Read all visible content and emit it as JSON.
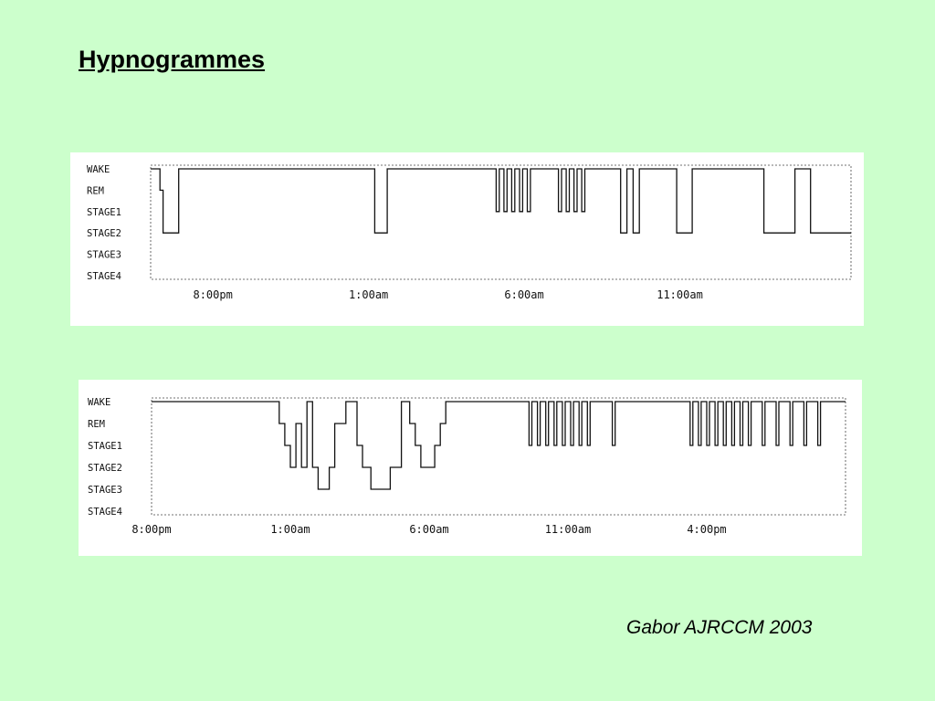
{
  "slide": {
    "title": "Hypnogrammes",
    "citation": "Gabor AJRCCM 2003"
  },
  "chart_data": [
    {
      "type": "line",
      "title": "",
      "stages": [
        "WAKE",
        "REM",
        "STAGE1",
        "STAGE2",
        "STAGE3",
        "STAGE4"
      ],
      "x_unit": "hours since 6:00pm",
      "xlim": [
        0,
        22.5
      ],
      "x_ticks": [
        {
          "x": 2,
          "label": "8:00pm"
        },
        {
          "x": 7,
          "label": "1:00am"
        },
        {
          "x": 12,
          "label": "6:00am"
        },
        {
          "x": 17,
          "label": "11:00am"
        }
      ],
      "series": [
        {
          "name": "",
          "points": [
            [
              0,
              0
            ],
            [
              0.3,
              0
            ],
            [
              0.3,
              1
            ],
            [
              0.4,
              1
            ],
            [
              0.4,
              3
            ],
            [
              0.9,
              3
            ],
            [
              0.9,
              0
            ],
            [
              7.2,
              0
            ],
            [
              7.2,
              3
            ],
            [
              7.6,
              3
            ],
            [
              7.6,
              0
            ],
            [
              11.1,
              0
            ],
            [
              11.1,
              2
            ],
            [
              11.2,
              2
            ],
            [
              11.2,
              0
            ],
            [
              11.35,
              0
            ],
            [
              11.35,
              2
            ],
            [
              11.45,
              2
            ],
            [
              11.45,
              0
            ],
            [
              11.6,
              0
            ],
            [
              11.6,
              2
            ],
            [
              11.7,
              2
            ],
            [
              11.7,
              0
            ],
            [
              11.85,
              0
            ],
            [
              11.85,
              2
            ],
            [
              11.95,
              2
            ],
            [
              11.95,
              0
            ],
            [
              12.1,
              0
            ],
            [
              12.1,
              2
            ],
            [
              12.2,
              2
            ],
            [
              12.2,
              0
            ],
            [
              13.1,
              0
            ],
            [
              13.1,
              2
            ],
            [
              13.2,
              2
            ],
            [
              13.2,
              0
            ],
            [
              13.35,
              0
            ],
            [
              13.35,
              2
            ],
            [
              13.45,
              2
            ],
            [
              13.45,
              0
            ],
            [
              13.6,
              0
            ],
            [
              13.6,
              2
            ],
            [
              13.7,
              2
            ],
            [
              13.7,
              0
            ],
            [
              13.85,
              0
            ],
            [
              13.85,
              2
            ],
            [
              13.95,
              2
            ],
            [
              13.95,
              0
            ],
            [
              15.1,
              0
            ],
            [
              15.1,
              3
            ],
            [
              15.3,
              3
            ],
            [
              15.3,
              0
            ],
            [
              15.5,
              0
            ],
            [
              15.5,
              3
            ],
            [
              15.7,
              3
            ],
            [
              15.7,
              0
            ],
            [
              16.9,
              0
            ],
            [
              16.9,
              3
            ],
            [
              17.4,
              3
            ],
            [
              17.4,
              0
            ],
            [
              19.7,
              0
            ],
            [
              19.7,
              3
            ],
            [
              20.7,
              3
            ],
            [
              20.7,
              0
            ],
            [
              21.2,
              0
            ],
            [
              21.2,
              3
            ],
            [
              22.5,
              3
            ]
          ]
        }
      ]
    },
    {
      "type": "line",
      "title": "",
      "stages": [
        "WAKE",
        "REM",
        "STAGE1",
        "STAGE2",
        "STAGE3",
        "STAGE4"
      ],
      "x_unit": "hours since 8:00pm",
      "xlim": [
        0,
        25
      ],
      "x_ticks": [
        {
          "x": 0,
          "label": "8:00pm"
        },
        {
          "x": 5,
          "label": "1:00am"
        },
        {
          "x": 10,
          "label": "6:00am"
        },
        {
          "x": 15,
          "label": "11:00am"
        },
        {
          "x": 20,
          "label": "4:00pm"
        }
      ],
      "series": [
        {
          "name": "",
          "points": [
            [
              0,
              0
            ],
            [
              4.6,
              0
            ],
            [
              4.6,
              1
            ],
            [
              4.8,
              1
            ],
            [
              4.8,
              2
            ],
            [
              5,
              2
            ],
            [
              5,
              3
            ],
            [
              5.2,
              3
            ],
            [
              5.2,
              1
            ],
            [
              5.4,
              1
            ],
            [
              5.4,
              3
            ],
            [
              5.6,
              3
            ],
            [
              5.6,
              0
            ],
            [
              5.8,
              0
            ],
            [
              5.8,
              3
            ],
            [
              6,
              3
            ],
            [
              6,
              4
            ],
            [
              6.4,
              4
            ],
            [
              6.4,
              3
            ],
            [
              6.6,
              3
            ],
            [
              6.6,
              1
            ],
            [
              7,
              1
            ],
            [
              7,
              0
            ],
            [
              7.4,
              0
            ],
            [
              7.4,
              2
            ],
            [
              7.6,
              2
            ],
            [
              7.6,
              3
            ],
            [
              7.9,
              3
            ],
            [
              7.9,
              4
            ],
            [
              8.6,
              4
            ],
            [
              8.6,
              3
            ],
            [
              9,
              3
            ],
            [
              9,
              0
            ],
            [
              9.3,
              0
            ],
            [
              9.3,
              1
            ],
            [
              9.5,
              1
            ],
            [
              9.5,
              2
            ],
            [
              9.7,
              2
            ],
            [
              9.7,
              3
            ],
            [
              10.2,
              3
            ],
            [
              10.2,
              2
            ],
            [
              10.4,
              2
            ],
            [
              10.4,
              1
            ],
            [
              10.6,
              1
            ],
            [
              10.6,
              0
            ],
            [
              13.6,
              0
            ],
            [
              13.6,
              2
            ],
            [
              13.7,
              2
            ],
            [
              13.7,
              0
            ],
            [
              13.9,
              0
            ],
            [
              13.9,
              2
            ],
            [
              14,
              2
            ],
            [
              14,
              0
            ],
            [
              14.2,
              0
            ],
            [
              14.2,
              2
            ],
            [
              14.3,
              2
            ],
            [
              14.3,
              0
            ],
            [
              14.5,
              0
            ],
            [
              14.5,
              2
            ],
            [
              14.6,
              2
            ],
            [
              14.6,
              0
            ],
            [
              14.8,
              0
            ],
            [
              14.8,
              2
            ],
            [
              14.9,
              2
            ],
            [
              14.9,
              0
            ],
            [
              15.1,
              0
            ],
            [
              15.1,
              2
            ],
            [
              15.2,
              2
            ],
            [
              15.2,
              0
            ],
            [
              15.4,
              0
            ],
            [
              15.4,
              2
            ],
            [
              15.5,
              2
            ],
            [
              15.5,
              0
            ],
            [
              15.7,
              0
            ],
            [
              15.7,
              2
            ],
            [
              15.8,
              2
            ],
            [
              15.8,
              0
            ],
            [
              16.6,
              0
            ],
            [
              16.6,
              2
            ],
            [
              16.7,
              2
            ],
            [
              16.7,
              0
            ],
            [
              19.4,
              0
            ],
            [
              19.4,
              2
            ],
            [
              19.5,
              2
            ],
            [
              19.5,
              0
            ],
            [
              19.7,
              0
            ],
            [
              19.7,
              2
            ],
            [
              19.8,
              2
            ],
            [
              19.8,
              0
            ],
            [
              20,
              0
            ],
            [
              20,
              2
            ],
            [
              20.1,
              2
            ],
            [
              20.1,
              0
            ],
            [
              20.3,
              0
            ],
            [
              20.3,
              2
            ],
            [
              20.4,
              2
            ],
            [
              20.4,
              0
            ],
            [
              20.6,
              0
            ],
            [
              20.6,
              2
            ],
            [
              20.7,
              2
            ],
            [
              20.7,
              0
            ],
            [
              20.9,
              0
            ],
            [
              20.9,
              2
            ],
            [
              21,
              2
            ],
            [
              21,
              0
            ],
            [
              21.2,
              0
            ],
            [
              21.2,
              2
            ],
            [
              21.3,
              2
            ],
            [
              21.3,
              0
            ],
            [
              21.5,
              0
            ],
            [
              21.5,
              2
            ],
            [
              21.6,
              2
            ],
            [
              21.6,
              0
            ],
            [
              22,
              0
            ],
            [
              22,
              2
            ],
            [
              22.1,
              2
            ],
            [
              22.1,
              0
            ],
            [
              22.5,
              0
            ],
            [
              22.5,
              2
            ],
            [
              22.6,
              2
            ],
            [
              22.6,
              0
            ],
            [
              23,
              0
            ],
            [
              23,
              2
            ],
            [
              23.1,
              2
            ],
            [
              23.1,
              0
            ],
            [
              23.5,
              0
            ],
            [
              23.5,
              2
            ],
            [
              23.6,
              2
            ],
            [
              23.6,
              0
            ],
            [
              24,
              0
            ],
            [
              24,
              2
            ],
            [
              24.1,
              2
            ],
            [
              24.1,
              0
            ],
            [
              25,
              0
            ]
          ]
        }
      ]
    }
  ]
}
